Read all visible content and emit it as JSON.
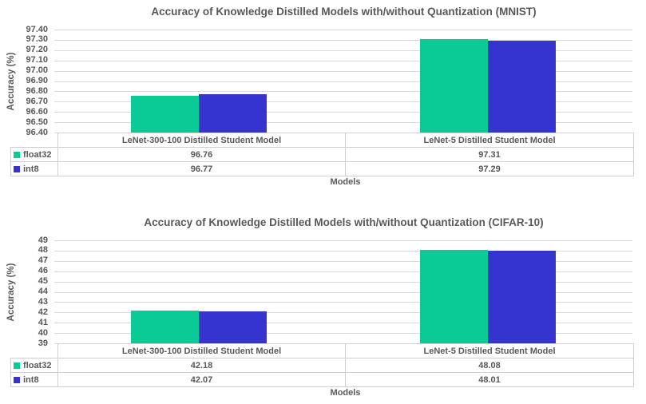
{
  "colors": {
    "float32": "#0ACB96",
    "int8": "#3634CE",
    "text": "#595959",
    "gridline": "#D9D9D9",
    "table_border": "#D0D0D0"
  },
  "chart_data": [
    {
      "type": "bar",
      "title": "Accuracy of Knowledge Distilled Models with/without Quantization (MNIST)",
      "ylabel": "Accuracy (%)",
      "xlabel": "Models",
      "ylim": [
        96.4,
        97.4
      ],
      "grid": true,
      "legend_position": "table-left",
      "yticks": [
        "97.40",
        "97.30",
        "97.20",
        "97.10",
        "97.00",
        "96.90",
        "96.80",
        "96.70",
        "96.60",
        "96.50",
        "96.40"
      ],
      "categories": [
        "LeNet-300-100 Distilled Student Model",
        "LeNet-5 Distilled Student Model"
      ],
      "series": [
        {
          "name": "float32",
          "color_key": "float32",
          "values": [
            96.76,
            97.31
          ],
          "labels": [
            "96.76",
            "97.31"
          ]
        },
        {
          "name": "int8",
          "color_key": "int8",
          "values": [
            96.77,
            97.29
          ],
          "labels": [
            "96.77",
            "97.29"
          ]
        }
      ]
    },
    {
      "type": "bar",
      "title": "Accuracy of Knowledge Distilled Models with/without Quantization (CIFAR-10)",
      "ylabel": "Accuracy (%)",
      "xlabel": "Models",
      "ylim": [
        39,
        49
      ],
      "grid": true,
      "legend_position": "table-left",
      "yticks": [
        "49",
        "48",
        "47",
        "46",
        "45",
        "44",
        "43",
        "42",
        "41",
        "40",
        "39"
      ],
      "categories": [
        "LeNet-300-100 Distilled Student Model",
        "LeNet-5 Distilled Student Model"
      ],
      "series": [
        {
          "name": "float32",
          "color_key": "float32",
          "values": [
            42.18,
            48.08
          ],
          "labels": [
            "42.18",
            "48.08"
          ]
        },
        {
          "name": "int8",
          "color_key": "int8",
          "values": [
            42.07,
            48.01
          ],
          "labels": [
            "42.07",
            "48.01"
          ]
        }
      ]
    }
  ]
}
